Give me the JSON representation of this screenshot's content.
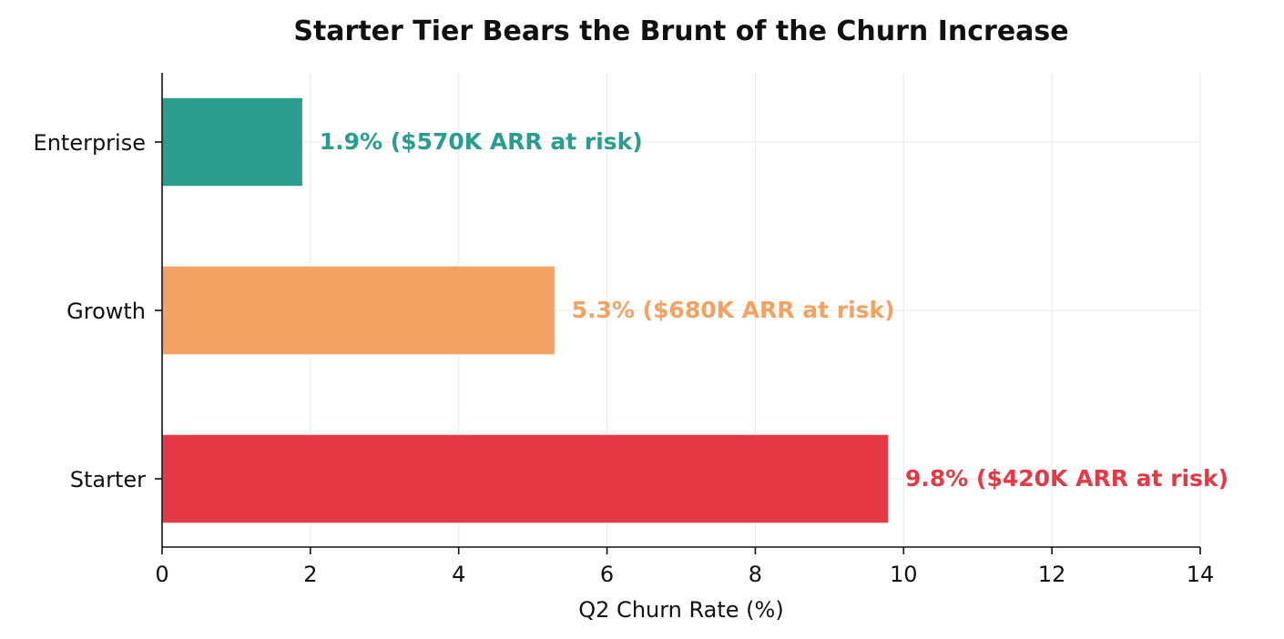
{
  "chart_data": {
    "type": "bar",
    "orientation": "horizontal",
    "title": "Starter Tier Bears the Brunt of the Churn Increase",
    "xlabel": "Q2 Churn Rate (%)",
    "ylabel": "",
    "xlim": [
      0,
      14
    ],
    "xticks": [
      0,
      2,
      4,
      6,
      8,
      10,
      12,
      14
    ],
    "grid": true,
    "categories": [
      "Enterprise",
      "Growth",
      "Starter"
    ],
    "values": [
      1.9,
      5.3,
      9.8
    ],
    "labels": [
      "1.9%  ($570K ARR at risk)",
      "5.3%  ($680K ARR at risk)",
      "9.8%  ($420K ARR at risk)"
    ],
    "colors": [
      "#2a9d8f",
      "#f4a261",
      "#e63946"
    ]
  }
}
